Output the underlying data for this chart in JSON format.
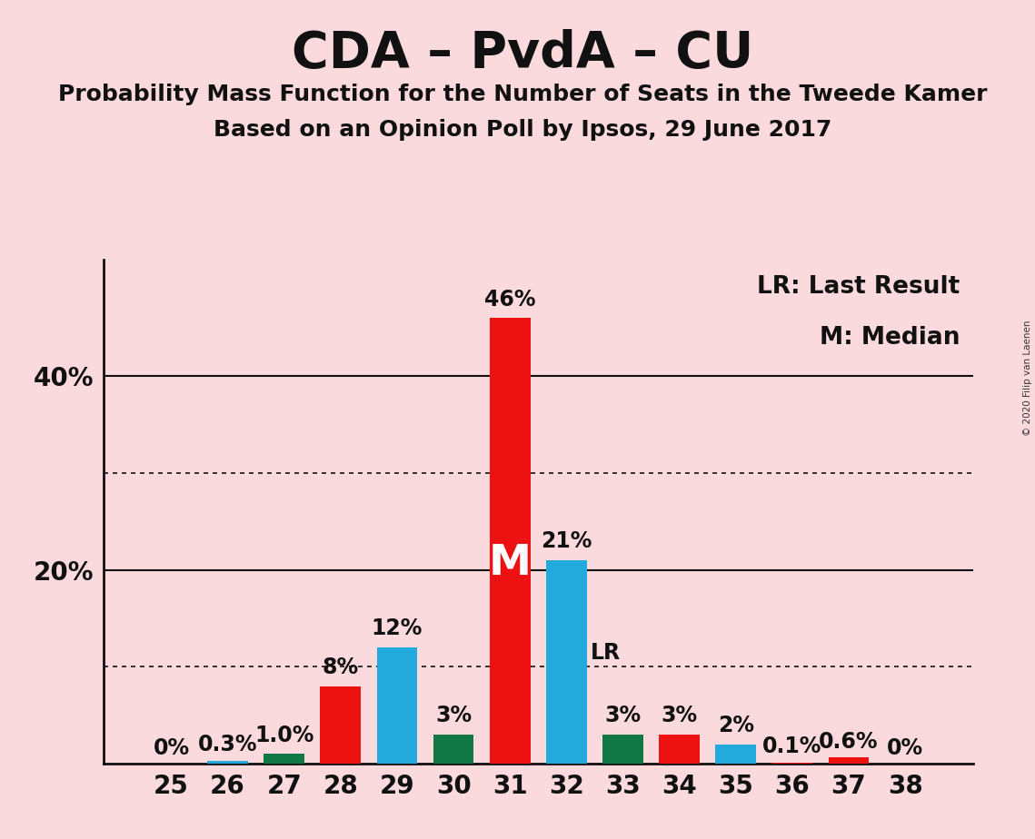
{
  "title": "CDA – PvdA – CU",
  "subtitle1": "Probability Mass Function for the Number of Seats in the Tweede Kamer",
  "subtitle2": "Based on an Opinion Poll by Ipsos, 29 June 2017",
  "copyright": "© 2020 Filip van Laenen",
  "seats": [
    25,
    26,
    27,
    28,
    29,
    30,
    31,
    32,
    33,
    34,
    35,
    36,
    37,
    38
  ],
  "values": [
    0.0,
    0.3,
    1.0,
    8.0,
    12.0,
    3.0,
    46.0,
    21.0,
    3.0,
    3.0,
    2.0,
    0.1,
    0.6,
    0.0
  ],
  "labels": [
    "0%",
    "0.3%",
    "1.0%",
    "8%",
    "12%",
    "3%",
    "46%",
    "21%",
    "3%",
    "3%",
    "2%",
    "0.1%",
    "0.6%",
    "0%"
  ],
  "colors": [
    "#EE1111",
    "#22AADD",
    "#117744",
    "#EE1111",
    "#22AADD",
    "#117744",
    "#EE1111",
    "#22AADD",
    "#117744",
    "#EE1111",
    "#22AADD",
    "#EE1111",
    "#EE1111",
    "#EE1111"
  ],
  "median_seat": 31,
  "lr_seat": 32,
  "lr_value": 10.0,
  "background_color": "#FADADD",
  "ylim": [
    0,
    52
  ],
  "legend_text1": "LR: Last Result",
  "legend_text2": "M: Median",
  "title_fontsize": 40,
  "subtitle_fontsize": 18,
  "label_fontsize": 17,
  "tick_fontsize": 20,
  "legend_fontsize": 19,
  "m_fontsize": 34,
  "bar_width": 0.72
}
